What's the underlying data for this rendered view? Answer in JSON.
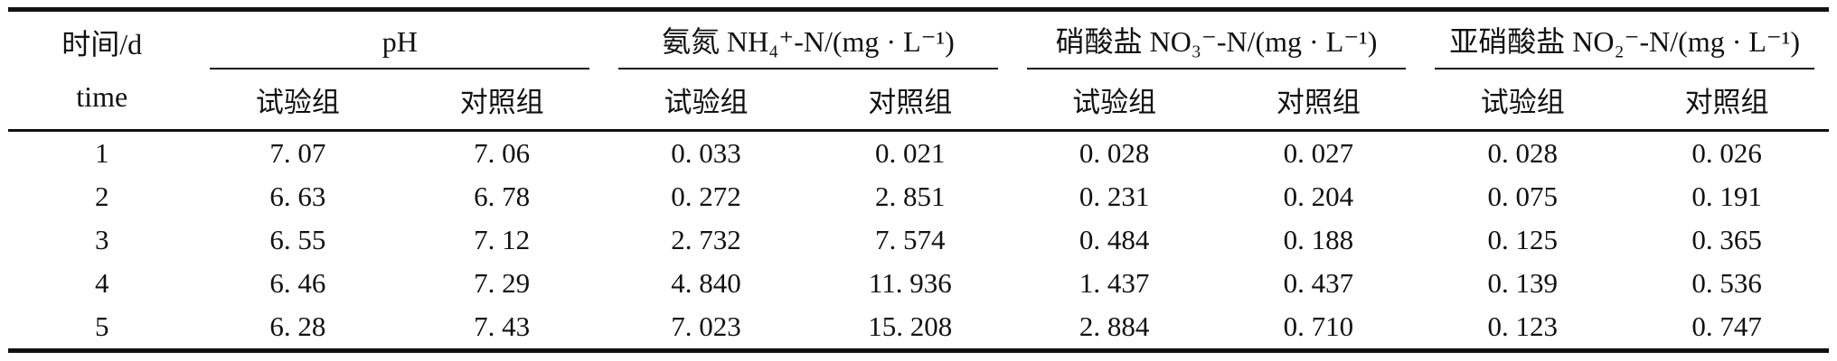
{
  "table": {
    "time_header": {
      "line1": "时间/d",
      "line2": "time"
    },
    "groups": [
      {
        "title": "pH",
        "sub": [
          "试验组",
          "对照组"
        ]
      },
      {
        "title": "氨氮 NH₄⁺-N/(mg · L⁻¹)",
        "sub": [
          "试验组",
          "对照组"
        ]
      },
      {
        "title": "硝酸盐 NO₃⁻-N/(mg · L⁻¹)",
        "sub": [
          "试验组",
          "对照组"
        ]
      },
      {
        "title": "亚硝酸盐 NO₂⁻-N/(mg · L⁻¹)",
        "sub": [
          "试验组",
          "对照组"
        ]
      }
    ],
    "rows": [
      {
        "time": "1",
        "values": [
          "7. 07",
          "7. 06",
          "0. 033",
          "0. 021",
          "0. 028",
          "0. 027",
          "0. 028",
          "0. 026"
        ]
      },
      {
        "time": "2",
        "values": [
          "6. 63",
          "6. 78",
          "0. 272",
          "2. 851",
          "0. 231",
          "0. 204",
          "0. 075",
          "0. 191"
        ]
      },
      {
        "time": "3",
        "values": [
          "6. 55",
          "7. 12",
          "2. 732",
          "7. 574",
          "0. 484",
          "0. 188",
          "0. 125",
          "0. 365"
        ]
      },
      {
        "time": "4",
        "values": [
          "6. 46",
          "7. 29",
          "4. 840",
          "11. 936",
          "1. 437",
          "0. 437",
          "0. 139",
          "0. 536"
        ]
      },
      {
        "time": "5",
        "values": [
          "6. 28",
          "7. 43",
          "7. 023",
          "15. 208",
          "2. 884",
          "0. 710",
          "0. 123",
          "0. 747"
        ]
      }
    ],
    "colors": {
      "text": "#111111",
      "rule": "#111111",
      "background": "#ffffff"
    }
  }
}
